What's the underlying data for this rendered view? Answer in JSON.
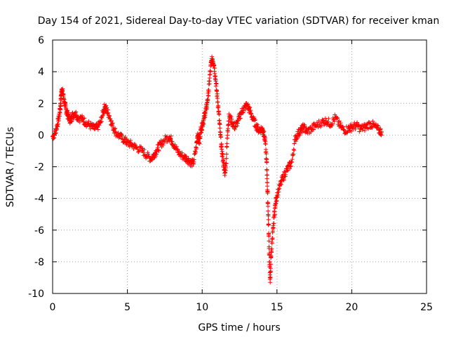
{
  "chart_data": {
    "type": "scatter",
    "title": "Day 154 of 2021, Sidereal Day-to-day VTEC variation (SDTVAR) for receiver kman",
    "xlabel": "GPS time / hours",
    "ylabel": "SDTVAR / TECUs",
    "xlim": [
      0,
      25
    ],
    "ylim": [
      -10,
      6
    ],
    "xticks": [
      0,
      5,
      10,
      15,
      20,
      25
    ],
    "yticks": [
      -10,
      -8,
      -6,
      -4,
      -2,
      0,
      2,
      4,
      6
    ],
    "xtick_labels": [
      "0",
      "5",
      "10",
      "15",
      "20",
      "25"
    ],
    "ytick_labels": [
      "-10",
      "-8",
      "-6",
      "-4",
      "-2",
      "0",
      "2",
      "4",
      "6"
    ],
    "grid": true,
    "marker": "+",
    "color": "#ff0000",
    "series": [
      {
        "name": "kman",
        "x": [
          0.0,
          0.15,
          0.3,
          0.4,
          0.5,
          0.55,
          0.6,
          0.7,
          0.8,
          0.9,
          1.0,
          1.1,
          1.2,
          1.3,
          1.5,
          1.7,
          2.0,
          2.2,
          2.5,
          2.8,
          3.0,
          3.2,
          3.4,
          3.5,
          3.6,
          3.8,
          4.0,
          4.2,
          4.5,
          4.8,
          5.0,
          5.3,
          5.6,
          6.0,
          6.3,
          6.6,
          6.8,
          7.0,
          7.2,
          7.5,
          7.8,
          8.0,
          8.2,
          8.5,
          8.8,
          9.0,
          9.2,
          9.4,
          9.6,
          9.7,
          9.8,
          9.9,
          10.0,
          10.1,
          10.2,
          10.3,
          10.4,
          10.5,
          10.6,
          10.7,
          10.8,
          10.9,
          11.0,
          11.1,
          11.2,
          11.3,
          11.4,
          11.5,
          11.6,
          11.7,
          11.8,
          12.0,
          12.2,
          12.4,
          12.6,
          12.8,
          13.0,
          13.2,
          13.4,
          13.6,
          13.8,
          14.0,
          14.1,
          14.2,
          14.3,
          14.35,
          14.4,
          14.45,
          14.5,
          14.55,
          14.6,
          14.7,
          14.8,
          14.9,
          15.0,
          15.2,
          15.4,
          15.6,
          15.8,
          16.0,
          16.2,
          16.4,
          16.6,
          16.8,
          17.0,
          17.3,
          17.6,
          18.0,
          18.3,
          18.6,
          18.9,
          19.2,
          19.5,
          19.8,
          20.0,
          20.3,
          20.6,
          20.9,
          21.2,
          21.5,
          21.8,
          22.0
        ],
        "y": [
          -0.1,
          0.1,
          0.6,
          1.0,
          1.6,
          2.2,
          2.9,
          2.6,
          2.0,
          1.6,
          1.3,
          1.1,
          0.9,
          1.2,
          1.4,
          1.1,
          1.0,
          0.8,
          0.6,
          0.4,
          0.5,
          0.8,
          1.5,
          1.8,
          1.6,
          1.2,
          0.6,
          0.2,
          -0.1,
          -0.3,
          -0.5,
          -0.6,
          -0.8,
          -1.0,
          -1.3,
          -1.5,
          -1.2,
          -0.9,
          -0.6,
          -0.3,
          -0.1,
          -0.4,
          -0.8,
          -1.2,
          -1.4,
          -1.5,
          -1.7,
          -1.8,
          -0.8,
          0.1,
          -0.5,
          0.3,
          0.6,
          1.0,
          1.4,
          1.8,
          2.5,
          3.6,
          4.6,
          4.8,
          4.4,
          3.5,
          2.5,
          1.5,
          0.2,
          -0.9,
          -1.6,
          -2.4,
          -1.8,
          0.3,
          1.2,
          0.8,
          0.5,
          0.9,
          1.4,
          1.7,
          1.9,
          1.5,
          1.0,
          0.6,
          0.3,
          0.4,
          0.2,
          -0.3,
          -1.5,
          -3.0,
          -4.5,
          -6.2,
          -8.0,
          -9.3,
          -7.6,
          -6.5,
          -5.2,
          -4.3,
          -3.8,
          -3.2,
          -2.7,
          -2.3,
          -2.0,
          -1.7,
          -0.3,
          0.1,
          0.3,
          0.5,
          0.2,
          0.4,
          0.6,
          0.8,
          0.9,
          0.7,
          1.1,
          0.6,
          0.3,
          0.4,
          0.5,
          0.6,
          0.4,
          0.5,
          0.7,
          0.6,
          0.3,
          0.2
        ]
      }
    ]
  }
}
